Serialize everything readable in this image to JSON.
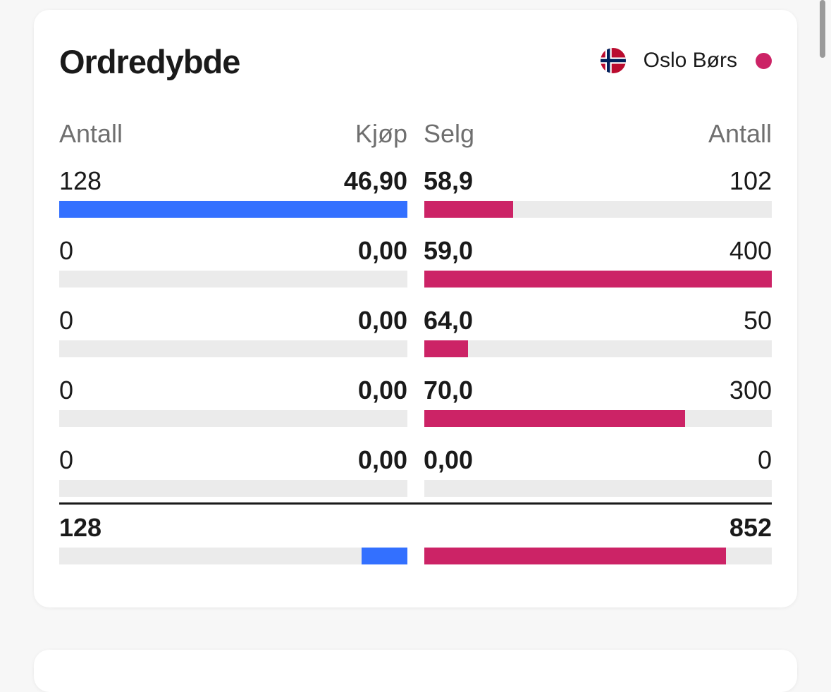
{
  "title": "Ordredybde",
  "exchange": {
    "name": "Oslo Børs",
    "flag_icon": "norway-flag-icon",
    "status_color": "#cc2366"
  },
  "colors": {
    "buy": "#3370ff",
    "sell": "#cc2366",
    "track": "#ebebeb"
  },
  "headers": {
    "buy_qty": "Antall",
    "buy_price": "Kjøp",
    "sell_price": "Selg",
    "sell_qty": "Antall"
  },
  "rows": [
    {
      "buy_qty": "128",
      "buy_price": "46,90",
      "sell_price": "58,9",
      "sell_qty": "102",
      "buy_fill": 1.0,
      "sell_fill": 0.255
    },
    {
      "buy_qty": "0",
      "buy_price": "0,00",
      "sell_price": "59,0",
      "sell_qty": "400",
      "buy_fill": 0,
      "sell_fill": 1.0
    },
    {
      "buy_qty": "0",
      "buy_price": "0,00",
      "sell_price": "64,0",
      "sell_qty": "50",
      "buy_fill": 0,
      "sell_fill": 0.125
    },
    {
      "buy_qty": "0",
      "buy_price": "0,00",
      "sell_price": "70,0",
      "sell_qty": "300",
      "buy_fill": 0,
      "sell_fill": 0.75
    },
    {
      "buy_qty": "0",
      "buy_price": "0,00",
      "sell_price": "0,00",
      "sell_qty": "0",
      "buy_fill": 0,
      "sell_fill": 0
    }
  ],
  "totals": {
    "buy_qty": "128",
    "sell_qty": "852",
    "buy_fill": 0.131,
    "sell_fill": 0.869
  }
}
